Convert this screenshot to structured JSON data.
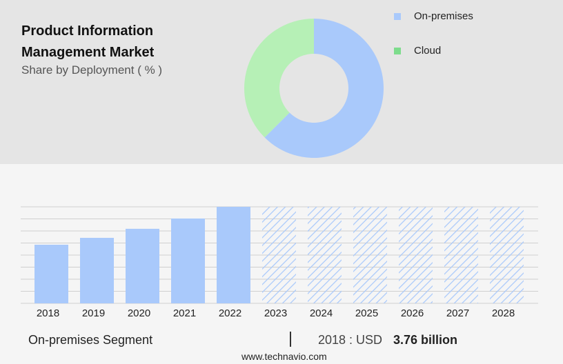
{
  "title": "Product Information Management Market",
  "subtitle": "Share by Deployment ( % )",
  "chart_data": [
    {
      "type": "donut",
      "categories": [
        "On-premises",
        "Cloud"
      ],
      "values": [
        62.5,
        37.5
      ],
      "colors": [
        "#a9c9fb",
        "#b6f0b6"
      ],
      "legend_colors": [
        "#a9c9fb",
        "#7ddc8c"
      ]
    },
    {
      "type": "bar",
      "categories": [
        "2018",
        "2019",
        "2020",
        "2021",
        "2022",
        "2023",
        "2024",
        "2025",
        "2026",
        "2027",
        "2028"
      ],
      "values": [
        3.76,
        4.2,
        4.78,
        5.44,
        6.19,
        null,
        null,
        null,
        null,
        null,
        null
      ],
      "color": "#a9c9fb",
      "grid": true
    }
  ],
  "footer": {
    "segment": "On-premises Segment",
    "year_label": "2018 : USD",
    "value_label": "3.76 billion",
    "source": "www.technavio.com"
  }
}
